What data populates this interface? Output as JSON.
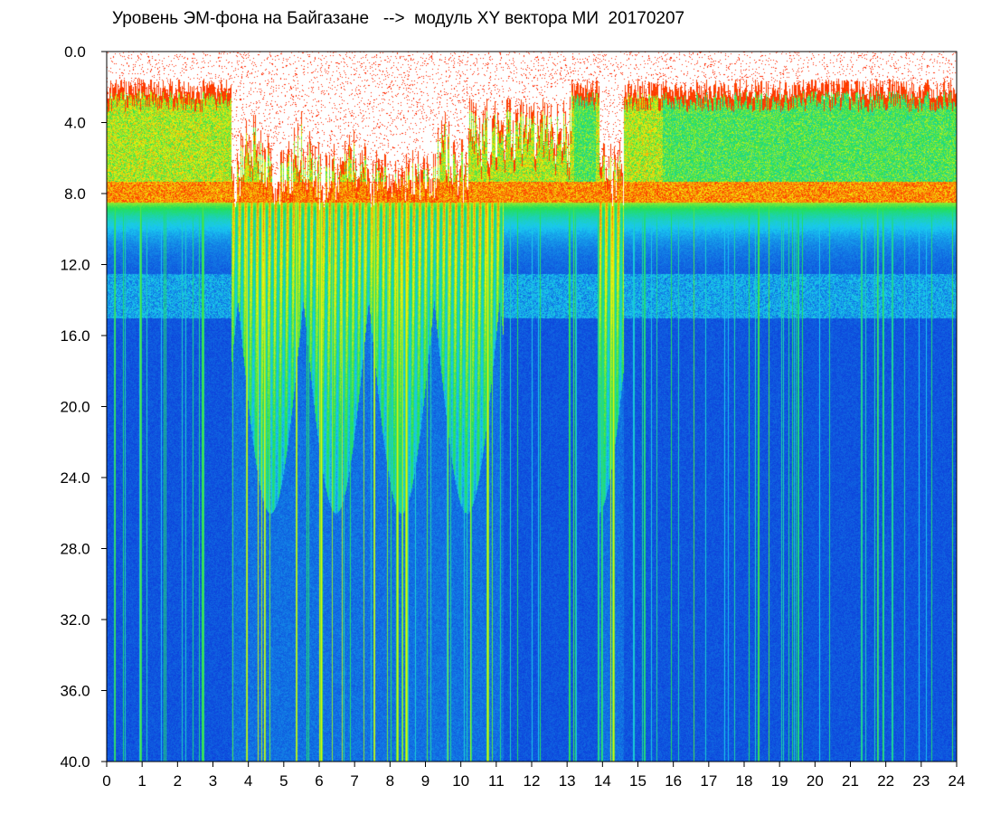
{
  "chart_data": {
    "type": "heatmap",
    "title": "Уровень ЭМ-фона на Байгазане   -->  модуль XY вектора МИ  20170207",
    "x_ticks": [
      "0",
      "1",
      "2",
      "3",
      "4",
      "5",
      "6",
      "7",
      "8",
      "9",
      "10",
      "11",
      "12",
      "13",
      "14",
      "15",
      "16",
      "17",
      "18",
      "19",
      "20",
      "21",
      "22",
      "23",
      "24"
    ],
    "y_ticks": [
      "0.0",
      "4.0",
      "8.0",
      "12.0",
      "16.0",
      "20.0",
      "24.0",
      "28.0",
      "32.0",
      "36.0",
      "40.0"
    ],
    "xlim": [
      0,
      24
    ],
    "ylim": [
      0,
      40
    ],
    "y_inverted": true,
    "colormap": [
      "#0a1fd6",
      "#19c8f0",
      "#22e05a",
      "#f2f20a",
      "#ff2a00"
    ],
    "background": "#ffffff",
    "strong_band_y": [
      1.5,
      8.5
    ],
    "faint_band_y": [
      12.5,
      15.0
    ],
    "disturbed_intervals_hours": [
      [
        3.5,
        11.2
      ],
      [
        13.9,
        14.6
      ]
    ],
    "bright_quiet_intervals_hours": [
      [
        13.2,
        13.8
      ],
      [
        15.7,
        24.0
      ]
    ],
    "vertical_streak_hours": [
      0.95,
      2.7,
      3.95,
      4.45,
      5.35,
      6.05,
      7.55,
      8.2,
      8.45,
      10.75,
      14.3,
      18.4
    ]
  }
}
